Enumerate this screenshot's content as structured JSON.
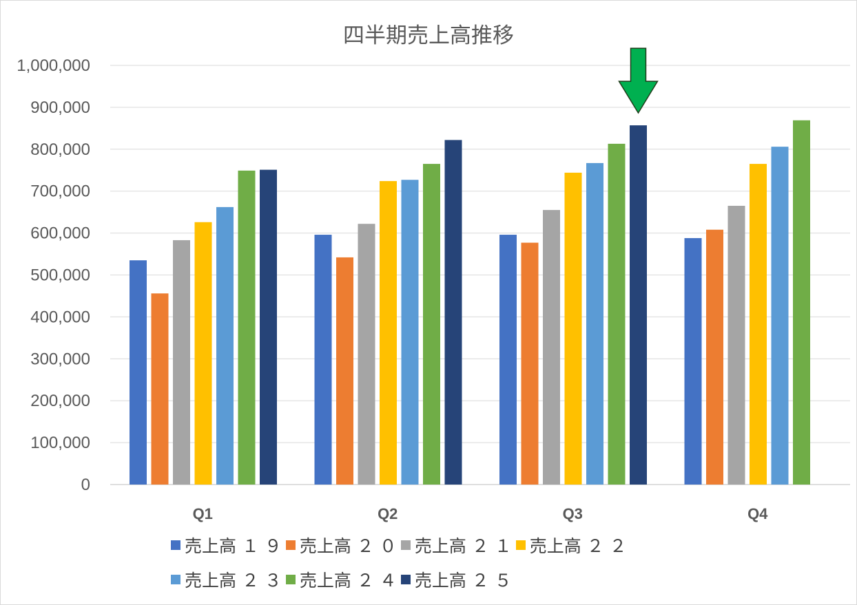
{
  "chart_data": {
    "type": "bar",
    "title": "四半期売上高推移",
    "categories": [
      "Q1",
      "Q2",
      "Q3",
      "Q4"
    ],
    "ylim": [
      0,
      1000000
    ],
    "yticks": [
      0,
      100000,
      200000,
      300000,
      400000,
      500000,
      600000,
      700000,
      800000,
      900000,
      1000000
    ],
    "ytick_labels": [
      "0",
      "100,000",
      "200,000",
      "300,000",
      "400,000",
      "500,000",
      "600,000",
      "700,000",
      "800,000",
      "900,000",
      "1,000,000"
    ],
    "grid": true,
    "legend_position": "bottom",
    "series": [
      {
        "name": "売上高１９",
        "color": "#4472c4",
        "values": [
          535000,
          596000,
          596000,
          588000
        ]
      },
      {
        "name": "売上高２０",
        "color": "#ed7d31",
        "values": [
          456000,
          542000,
          577000,
          608000
        ]
      },
      {
        "name": "売上高２１",
        "color": "#a5a5a5",
        "values": [
          583000,
          622000,
          655000,
          665000
        ]
      },
      {
        "name": "売上高２２",
        "color": "#ffc000",
        "values": [
          626000,
          724000,
          744000,
          765000
        ]
      },
      {
        "name": "売上高２３",
        "color": "#5b9bd5",
        "values": [
          662000,
          727000,
          767000,
          806000
        ]
      },
      {
        "name": "売上高２４",
        "color": "#70ad47",
        "values": [
          749000,
          765000,
          813000,
          869000
        ]
      },
      {
        "name": "売上高２５",
        "color": "#264478",
        "values": [
          751000,
          822000,
          857000,
          null
        ]
      }
    ],
    "annotation": {
      "type": "arrow",
      "color": "#00b050",
      "target": {
        "category": "Q3",
        "series": "売上高２５"
      }
    }
  }
}
